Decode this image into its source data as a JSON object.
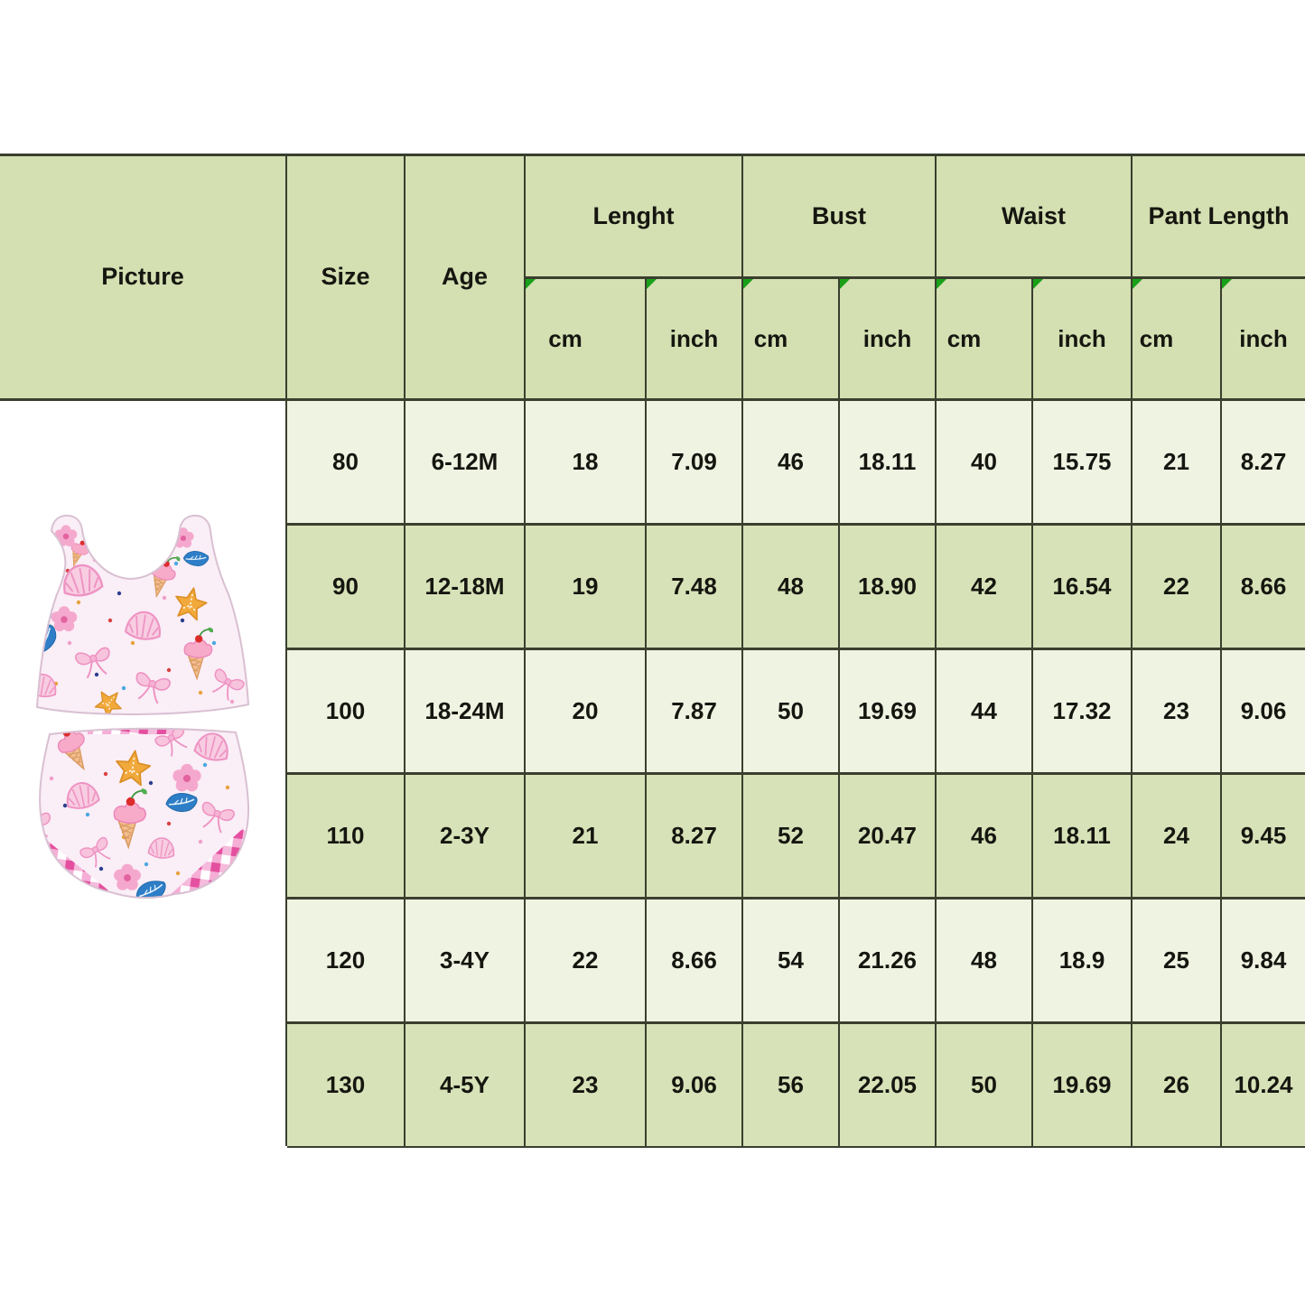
{
  "table": {
    "columns": {
      "picture": "Picture",
      "size": "Size",
      "age": "Age"
    },
    "groups": [
      {
        "label": "Lenght"
      },
      {
        "label": "Bust"
      },
      {
        "label": "Waist"
      },
      {
        "label": "Pant Length"
      }
    ],
    "units": {
      "cm": "cm",
      "inch": "inch"
    },
    "rows": [
      {
        "size": "80",
        "age": "6-12M",
        "values": [
          "18",
          "7.09",
          "46",
          "18.11",
          "40",
          "15.75",
          "21",
          "8.27"
        ]
      },
      {
        "size": "90",
        "age": "12-18M",
        "values": [
          "19",
          "7.48",
          "48",
          "18.90",
          "42",
          "16.54",
          "22",
          "8.66"
        ]
      },
      {
        "size": "100",
        "age": "18-24M",
        "values": [
          "20",
          "7.87",
          "50",
          "19.69",
          "44",
          "17.32",
          "23",
          "9.06"
        ]
      },
      {
        "size": "110",
        "age": "2-3Y",
        "values": [
          "21",
          "8.27",
          "52",
          "20.47",
          "46",
          "18.11",
          "24",
          "9.45"
        ]
      },
      {
        "size": "120",
        "age": "3-4Y",
        "values": [
          "22",
          "8.66",
          "54",
          "21.26",
          "48",
          "18.9",
          "25",
          "9.84"
        ]
      },
      {
        "size": "130",
        "age": "4-5Y",
        "values": [
          "23",
          "9.06",
          "56",
          "22.05",
          "50",
          "19.69",
          "26",
          "10.24"
        ]
      }
    ]
  },
  "colors": {
    "header_bg": "#d4dfb2",
    "row_light": "#eff3e2",
    "row_dark": "#d7e2b8",
    "grid_line": "#3a3f2e",
    "indicator_triangle": "#18a018",
    "text": "#161610",
    "swimsuit": {
      "base": "#faeef7",
      "outline": "#d9c0d2",
      "shell_fill": "#f8cde2",
      "shell_line": "#ee93c2",
      "starfish": "#f2a93c",
      "bow": "#f8c4dd",
      "icecream_scoop": "#f7abc9",
      "cone": "#f2bd8f",
      "cherry": "#dd2b2b",
      "leaf": "#2e7ec7",
      "flower": "#f5a8cd",
      "flower_center": "#e2639f",
      "gingham_pink": "#f5aed6",
      "gingham_magenta": "#e4509f"
    }
  }
}
